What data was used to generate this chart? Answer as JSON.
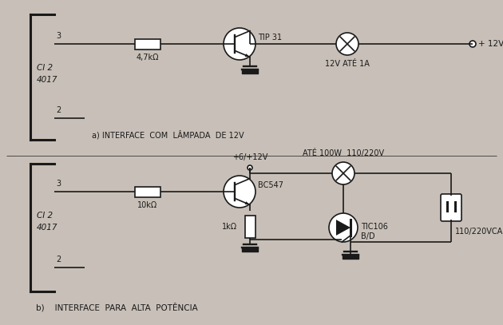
{
  "bg_color": "#c8c0b8",
  "line_color": "#1a1a1a",
  "text_color": "#1a1a1a",
  "fig_width": 6.3,
  "fig_height": 4.07,
  "title_a": "a) INTERFACE  COM  LÂMPADA  DE 12V",
  "title_b": "b)    INTERFACE  PARA  ALTA  POTÊNCIA",
  "label_ci2_4017_a": [
    "CI 2",
    "4017"
  ],
  "label_ci2_4017_b": [
    "CI 2",
    "4017"
  ],
  "label_resistor_a": "4,7kΩ",
  "label_transistor_a": "TIP 31",
  "label_lamp_a": "12V ATÉ 1A",
  "label_vcc_a": "+ 12V",
  "label_resistor_b": "10kΩ",
  "label_resistor_b2": "1kΩ",
  "label_transistor_b": "BC547",
  "label_vcc_b": "+6/+12V",
  "label_thyristor": "TIC106\nB/D",
  "label_lamp_b": "ATÉ 100W  110/220V",
  "label_plug": "110/220VCA",
  "node3_a": "3",
  "node2_a": "2",
  "node3_b": "3",
  "node2_b": "2"
}
